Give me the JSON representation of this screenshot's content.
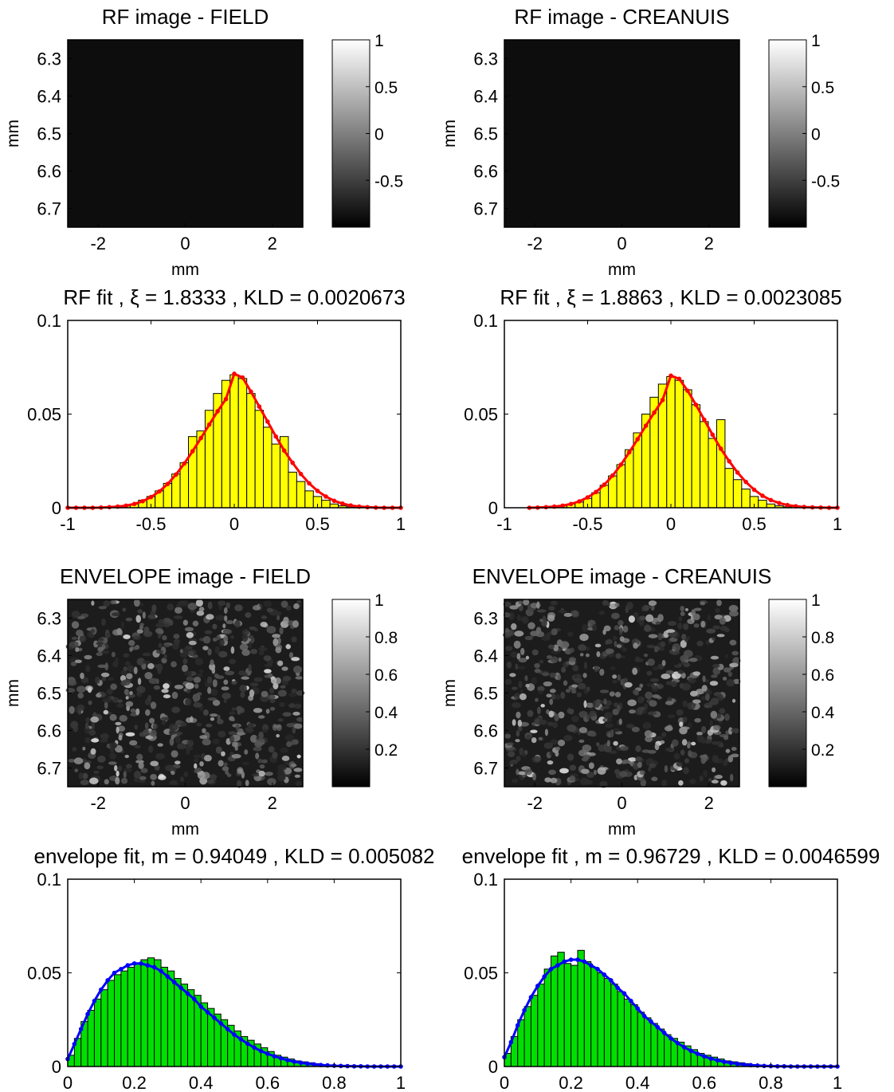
{
  "figure": {
    "panels": [
      {
        "id": "rf-field",
        "kind": "image",
        "title": "RF image - FIELD",
        "xlabel": "mm",
        "ylabel": "mm",
        "xticks": [
          "-2",
          "0",
          "2"
        ],
        "yticks": [
          "6.3",
          "6.4",
          "6.5",
          "6.6",
          "6.7"
        ],
        "colorbar": {
          "ticks": [
            "1",
            "0.5",
            "0",
            "-0.5"
          ],
          "range": [
            -1,
            1
          ]
        }
      },
      {
        "id": "rf-creanuis",
        "kind": "image",
        "title": "RF image - CREANUIS",
        "xlabel": "mm",
        "ylabel": "mm",
        "xticks": [
          "-2",
          "0",
          "2"
        ],
        "yticks": [
          "6.3",
          "6.4",
          "6.5",
          "6.6",
          "6.7"
        ],
        "colorbar": {
          "ticks": [
            "1",
            "0.5",
            "0",
            "-0.5"
          ],
          "range": [
            -1,
            1
          ]
        }
      },
      {
        "id": "env-field",
        "kind": "image",
        "title": "ENVELOPE image - FIELD",
        "xlabel": "mm",
        "ylabel": "mm",
        "xticks": [
          "-2",
          "0",
          "2"
        ],
        "yticks": [
          "6.3",
          "6.4",
          "6.5",
          "6.6",
          "6.7"
        ],
        "colorbar": {
          "ticks": [
            "1",
            "0.8",
            "0.6",
            "0.4",
            "0.2"
          ],
          "range": [
            0,
            1
          ]
        }
      },
      {
        "id": "env-creanuis",
        "kind": "image",
        "title": "ENVELOPE image - CREANUIS",
        "xlabel": "mm",
        "ylabel": "mm",
        "xticks": [
          "-2",
          "0",
          "2"
        ],
        "yticks": [
          "6.3",
          "6.4",
          "6.5",
          "6.6",
          "6.7"
        ],
        "colorbar": {
          "ticks": [
            "1",
            "0.8",
            "0.6",
            "0.4",
            "0.2"
          ],
          "range": [
            0,
            1
          ]
        }
      }
    ]
  },
  "chart_data": [
    {
      "type": "bar",
      "panel": "rf-fit-field",
      "title": "RF fit , ξ = 1.8333 , KLD = 0.0020673",
      "xlim": [
        -1,
        1
      ],
      "ylim": [
        0,
        0.1
      ],
      "xticks": [
        "-1",
        "-0.5",
        "0",
        "0.5",
        "1"
      ],
      "yticks": [
        "0",
        "0.05",
        "0.1"
      ],
      "bar_color": "#ffff00",
      "fit_color": "#ff0000",
      "bins": [
        -0.7,
        -0.65,
        -0.6,
        -0.55,
        -0.5,
        -0.45,
        -0.4,
        -0.35,
        -0.3,
        -0.25,
        -0.2,
        -0.15,
        -0.1,
        -0.05,
        0,
        0.05,
        0.1,
        0.15,
        0.2,
        0.25,
        0.3,
        0.35,
        0.4,
        0.45,
        0.5,
        0.55,
        0.6,
        0.65,
        0.7
      ],
      "hist": [
        0.0005,
        0.001,
        0.002,
        0.004,
        0.006,
        0.009,
        0.013,
        0.018,
        0.024,
        0.038,
        0.041,
        0.052,
        0.061,
        0.068,
        0.071,
        0.069,
        0.061,
        0.052,
        0.043,
        0.034,
        0.038,
        0.019,
        0.014,
        0.009,
        0.006,
        0.004,
        0.002,
        0.001,
        0.0005
      ],
      "fit_x": [
        -1,
        -0.95,
        -0.9,
        -0.85,
        -0.8,
        -0.75,
        -0.7,
        -0.65,
        -0.6,
        -0.55,
        -0.5,
        -0.45,
        -0.4,
        -0.35,
        -0.3,
        -0.25,
        -0.2,
        -0.15,
        -0.1,
        -0.05,
        0,
        0.05,
        0.1,
        0.15,
        0.2,
        0.25,
        0.3,
        0.35,
        0.4,
        0.45,
        0.5,
        0.55,
        0.6,
        0.65,
        0.7,
        0.75,
        0.8,
        0.85,
        0.9,
        0.95,
        1
      ],
      "fit_y": [
        0,
        0,
        0,
        0,
        0.0001,
        0.0003,
        0.0006,
        0.0011,
        0.002,
        0.0035,
        0.0057,
        0.0087,
        0.0127,
        0.0177,
        0.0236,
        0.0302,
        0.0372,
        0.0444,
        0.0515,
        0.058,
        0.0715,
        0.0695,
        0.062,
        0.054,
        0.046,
        0.038,
        0.0305,
        0.024,
        0.018,
        0.013,
        0.009,
        0.006,
        0.0037,
        0.0022,
        0.0012,
        0.0006,
        0.0003,
        0.0001,
        0,
        0,
        0
      ]
    },
    {
      "type": "bar",
      "panel": "rf-fit-creanuis",
      "title": "RF fit , ξ = 1.8863 , KLD = 0.0023085",
      "xlim": [
        -1,
        1
      ],
      "ylim": [
        0,
        0.1
      ],
      "xticks": [
        "-1",
        "-0.5",
        "0",
        "0.5",
        "1"
      ],
      "yticks": [
        "0",
        "0.05",
        "0.1"
      ],
      "bar_color": "#ffff00",
      "fit_color": "#ff0000",
      "bins": [
        -0.7,
        -0.65,
        -0.6,
        -0.55,
        -0.5,
        -0.45,
        -0.4,
        -0.35,
        -0.3,
        -0.25,
        -0.2,
        -0.15,
        -0.1,
        -0.05,
        0,
        0.05,
        0.1,
        0.15,
        0.2,
        0.25,
        0.3,
        0.35,
        0.4,
        0.45,
        0.5,
        0.55,
        0.6,
        0.65,
        0.7
      ],
      "hist": [
        0.0005,
        0.001,
        0.002,
        0.003,
        0.005,
        0.008,
        0.012,
        0.017,
        0.023,
        0.031,
        0.04,
        0.05,
        0.059,
        0.066,
        0.07,
        0.068,
        0.063,
        0.055,
        0.046,
        0.037,
        0.047,
        0.021,
        0.015,
        0.01,
        0.006,
        0.004,
        0.002,
        0.001,
        0.0005
      ],
      "fit_x": [
        -0.85,
        -0.8,
        -0.75,
        -0.7,
        -0.65,
        -0.6,
        -0.55,
        -0.5,
        -0.45,
        -0.4,
        -0.35,
        -0.3,
        -0.25,
        -0.2,
        -0.15,
        -0.1,
        -0.05,
        0,
        0.05,
        0.1,
        0.15,
        0.2,
        0.25,
        0.3,
        0.35,
        0.4,
        0.45,
        0.5,
        0.55,
        0.6,
        0.65,
        0.7,
        0.75,
        0.8,
        0.85,
        0.9,
        0.95,
        1
      ],
      "fit_y": [
        0,
        0.0001,
        0.0003,
        0.0006,
        0.0011,
        0.002,
        0.0034,
        0.0055,
        0.0084,
        0.0123,
        0.0172,
        0.023,
        0.0296,
        0.0366,
        0.0438,
        0.0508,
        0.0575,
        0.0705,
        0.0688,
        0.0625,
        0.055,
        0.047,
        0.039,
        0.0315,
        0.0248,
        0.0188,
        0.0138,
        0.0096,
        0.0064,
        0.0041,
        0.0025,
        0.0014,
        0.0008,
        0.0004,
        0.0002,
        0.0001,
        0,
        0
      ]
    },
    {
      "type": "bar",
      "panel": "env-fit-field",
      "title": "envelope fit, m =  0.94049 , KLD = 0.005082",
      "xlim": [
        0,
        1
      ],
      "ylim": [
        0,
        0.1
      ],
      "xticks": [
        "0",
        "0.2",
        "0.4",
        "0.6",
        "0.8",
        "1"
      ],
      "yticks": [
        "0",
        "0.05",
        "0.1"
      ],
      "bar_color": "#00e000",
      "fit_color": "#0000ff",
      "bins": [
        0.01,
        0.03,
        0.05,
        0.07,
        0.09,
        0.11,
        0.13,
        0.15,
        0.17,
        0.19,
        0.21,
        0.23,
        0.25,
        0.27,
        0.29,
        0.31,
        0.33,
        0.35,
        0.37,
        0.39,
        0.41,
        0.43,
        0.45,
        0.47,
        0.49,
        0.51,
        0.53,
        0.55,
        0.57,
        0.59,
        0.61,
        0.63,
        0.65,
        0.67,
        0.69,
        0.71,
        0.73,
        0.75,
        0.77,
        0.79,
        0.81,
        0.83,
        0.85,
        0.87
      ],
      "hist": [
        0.006,
        0.015,
        0.024,
        0.03,
        0.036,
        0.041,
        0.046,
        0.049,
        0.051,
        0.053,
        0.055,
        0.057,
        0.058,
        0.057,
        0.053,
        0.051,
        0.047,
        0.044,
        0.041,
        0.038,
        0.034,
        0.031,
        0.028,
        0.025,
        0.022,
        0.019,
        0.016,
        0.014,
        0.012,
        0.01,
        0.008,
        0.006,
        0.005,
        0.004,
        0.003,
        0.0025,
        0.002,
        0.0015,
        0.001,
        0.0008,
        0.0006,
        0.0004,
        0.0003,
        0.0002
      ],
      "fit_x": [
        0,
        0.02,
        0.04,
        0.06,
        0.08,
        0.1,
        0.12,
        0.14,
        0.16,
        0.18,
        0.2,
        0.22,
        0.24,
        0.26,
        0.28,
        0.3,
        0.32,
        0.34,
        0.36,
        0.38,
        0.4,
        0.42,
        0.44,
        0.46,
        0.48,
        0.5,
        0.52,
        0.54,
        0.56,
        0.58,
        0.6,
        0.62,
        0.64,
        0.66,
        0.68,
        0.7,
        0.72,
        0.74,
        0.76,
        0.78,
        0.8,
        0.82,
        0.84,
        0.86,
        0.88,
        0.9,
        0.92,
        0.94,
        0.96,
        0.98,
        1
      ],
      "fit_y": [
        0.004,
        0.012,
        0.02,
        0.028,
        0.035,
        0.041,
        0.046,
        0.05,
        0.052,
        0.054,
        0.055,
        0.055,
        0.054,
        0.053,
        0.051,
        0.048,
        0.045,
        0.042,
        0.039,
        0.036,
        0.032,
        0.029,
        0.026,
        0.023,
        0.02,
        0.017,
        0.0145,
        0.0122,
        0.0101,
        0.0083,
        0.0068,
        0.0055,
        0.0044,
        0.0034,
        0.0026,
        0.002,
        0.0015,
        0.0011,
        0.0008,
        0.0006,
        0.0004,
        0.0003,
        0.0002,
        0.0001,
        0.0001,
        0,
        0,
        0,
        0,
        0,
        0
      ]
    },
    {
      "type": "bar",
      "panel": "env-fit-creanuis",
      "title": "envelope fit , m = 0.96729 , KLD = 0.0046599",
      "xlim": [
        0,
        1
      ],
      "ylim": [
        0,
        0.1
      ],
      "xticks": [
        "0",
        "0.2",
        "0.4",
        "0.6",
        "0.8",
        "1"
      ],
      "yticks": [
        "0",
        "0.05",
        "0.1"
      ],
      "bar_color": "#00e000",
      "fit_color": "#0000ff",
      "bins": [
        0.01,
        0.03,
        0.05,
        0.07,
        0.09,
        0.11,
        0.13,
        0.15,
        0.17,
        0.19,
        0.21,
        0.23,
        0.25,
        0.27,
        0.29,
        0.31,
        0.33,
        0.35,
        0.37,
        0.39,
        0.41,
        0.43,
        0.45,
        0.47,
        0.49,
        0.51,
        0.53,
        0.55,
        0.57,
        0.59,
        0.61,
        0.63,
        0.65,
        0.67,
        0.69,
        0.71,
        0.73,
        0.75,
        0.77,
        0.79,
        0.81,
        0.83,
        0.85,
        0.87
      ],
      "hist": [
        0.007,
        0.016,
        0.025,
        0.032,
        0.038,
        0.044,
        0.052,
        0.059,
        0.061,
        0.055,
        0.054,
        0.062,
        0.056,
        0.053,
        0.05,
        0.047,
        0.044,
        0.04,
        0.036,
        0.033,
        0.029,
        0.026,
        0.023,
        0.02,
        0.017,
        0.015,
        0.013,
        0.011,
        0.009,
        0.007,
        0.006,
        0.005,
        0.004,
        0.003,
        0.0025,
        0.002,
        0.0015,
        0.001,
        0.0008,
        0.0006,
        0.0004,
        0.0003,
        0.0002,
        0.0001
      ],
      "fit_x": [
        0,
        0.02,
        0.04,
        0.06,
        0.08,
        0.1,
        0.12,
        0.14,
        0.16,
        0.18,
        0.2,
        0.22,
        0.24,
        0.26,
        0.28,
        0.3,
        0.32,
        0.34,
        0.36,
        0.38,
        0.4,
        0.42,
        0.44,
        0.46,
        0.48,
        0.5,
        0.52,
        0.54,
        0.56,
        0.58,
        0.6,
        0.62,
        0.64,
        0.66,
        0.68,
        0.7,
        0.72,
        0.74,
        0.76,
        0.78,
        0.8,
        0.82,
        0.84,
        0.86,
        0.88,
        0.9,
        0.92,
        0.94,
        0.96,
        0.98,
        1
      ],
      "fit_y": [
        0.005,
        0.013,
        0.022,
        0.03,
        0.037,
        0.043,
        0.048,
        0.052,
        0.054,
        0.056,
        0.057,
        0.057,
        0.056,
        0.054,
        0.052,
        0.049,
        0.046,
        0.042,
        0.039,
        0.035,
        0.031,
        0.027,
        0.024,
        0.021,
        0.018,
        0.015,
        0.0125,
        0.0103,
        0.0084,
        0.0068,
        0.0054,
        0.0042,
        0.0033,
        0.0025,
        0.0019,
        0.0014,
        0.001,
        0.0007,
        0.0005,
        0.0003,
        0.0002,
        0.0001,
        0.0001,
        0,
        0,
        0,
        0,
        0,
        0,
        0,
        0
      ]
    }
  ]
}
